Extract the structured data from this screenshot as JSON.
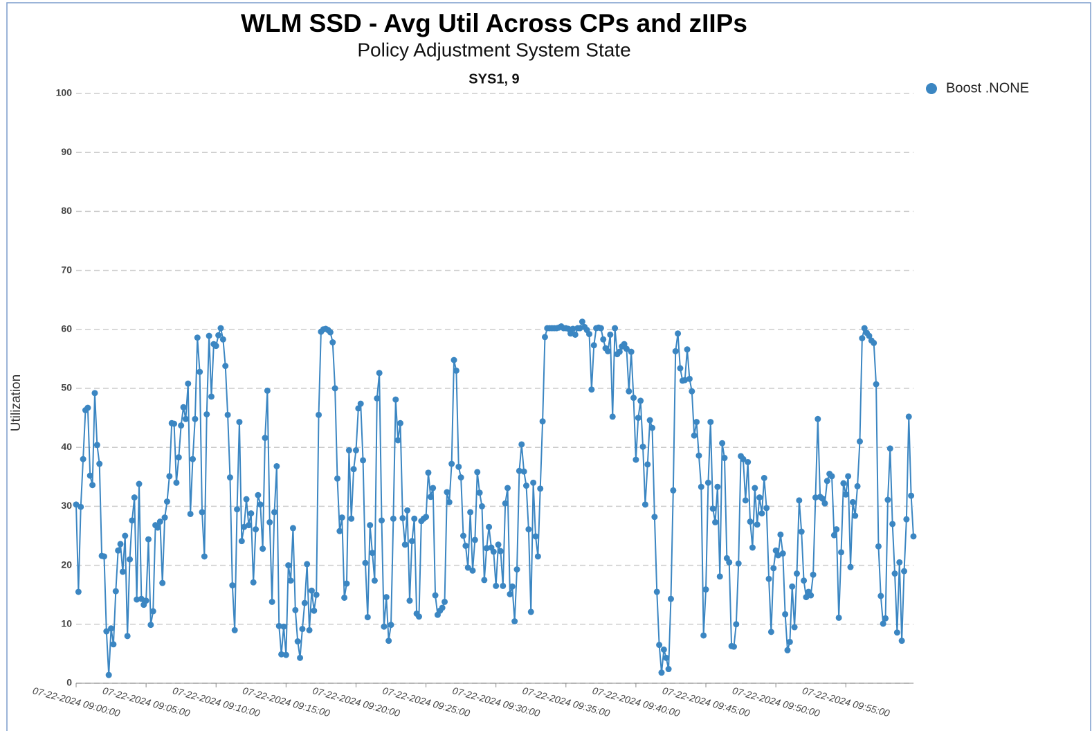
{
  "chart_data": {
    "type": "line",
    "title": "WLM SSD - Avg Util Across CPs and zIIPs",
    "subtitle": "Policy Adjustment System State",
    "panel_title": "SYS1, 9",
    "ylabel": "Utilization",
    "ylim": [
      0,
      100
    ],
    "yticks": [
      0,
      10,
      20,
      30,
      40,
      50,
      60,
      70,
      80,
      90,
      100
    ],
    "grid": true,
    "legend": "top-right",
    "xlim": [
      "07-22-2024 09:00:00",
      "07-22-2024 09:59:50"
    ],
    "xticks": [
      "07-22-2024 09:00:00",
      "07-22-2024 09:05:00",
      "07-22-2024 09:10:00",
      "07-22-2024 09:15:00",
      "07-22-2024 09:20:00",
      "07-22-2024 09:25:00",
      "07-22-2024 09:30:00",
      "07-22-2024 09:35:00",
      "07-22-2024 09:40:00",
      "07-22-2024 09:45:00",
      "07-22-2024 09:50:00",
      "07-22-2024 09:55:00"
    ],
    "x": [
      "07-22-2024 09:00:00",
      "07-22-2024 09:00:10",
      "07-22-2024 09:00:20",
      "07-22-2024 09:00:30",
      "07-22-2024 09:00:40",
      "07-22-2024 09:00:50",
      "07-22-2024 09:01:00",
      "07-22-2024 09:01:10",
      "07-22-2024 09:01:20",
      "07-22-2024 09:01:30",
      "07-22-2024 09:01:40",
      "07-22-2024 09:01:50",
      "07-22-2024 09:02:00",
      "07-22-2024 09:02:10",
      "07-22-2024 09:02:20",
      "07-22-2024 09:02:30",
      "07-22-2024 09:02:40",
      "07-22-2024 09:02:50",
      "07-22-2024 09:03:00",
      "07-22-2024 09:03:10",
      "07-22-2024 09:03:20",
      "07-22-2024 09:03:30",
      "07-22-2024 09:03:40",
      "07-22-2024 09:03:50",
      "07-22-2024 09:04:00",
      "07-22-2024 09:04:10",
      "07-22-2024 09:04:20",
      "07-22-2024 09:04:30",
      "07-22-2024 09:04:40",
      "07-22-2024 09:04:50",
      "07-22-2024 09:05:00",
      "07-22-2024 09:05:10",
      "07-22-2024 09:05:20",
      "07-22-2024 09:05:30",
      "07-22-2024 09:05:40",
      "07-22-2024 09:05:50",
      "07-22-2024 09:06:00",
      "07-22-2024 09:06:10",
      "07-22-2024 09:06:20",
      "07-22-2024 09:06:30",
      "07-22-2024 09:06:40",
      "07-22-2024 09:06:50",
      "07-22-2024 09:07:00",
      "07-22-2024 09:07:10",
      "07-22-2024 09:07:20",
      "07-22-2024 09:07:30",
      "07-22-2024 09:07:40",
      "07-22-2024 09:07:50",
      "07-22-2024 09:08:00",
      "07-22-2024 09:08:10",
      "07-22-2024 09:08:20",
      "07-22-2024 09:08:30",
      "07-22-2024 09:08:40",
      "07-22-2024 09:08:50",
      "07-22-2024 09:09:00",
      "07-22-2024 09:09:10",
      "07-22-2024 09:09:20",
      "07-22-2024 09:09:30",
      "07-22-2024 09:09:40",
      "07-22-2024 09:09:50",
      "07-22-2024 09:10:00",
      "07-22-2024 09:10:10",
      "07-22-2024 09:10:20",
      "07-22-2024 09:10:30",
      "07-22-2024 09:10:40",
      "07-22-2024 09:10:50",
      "07-22-2024 09:11:00",
      "07-22-2024 09:11:10",
      "07-22-2024 09:11:20",
      "07-22-2024 09:11:30",
      "07-22-2024 09:11:40",
      "07-22-2024 09:11:50",
      "07-22-2024 09:12:00",
      "07-22-2024 09:12:10",
      "07-22-2024 09:12:20",
      "07-22-2024 09:12:30",
      "07-22-2024 09:12:40",
      "07-22-2024 09:12:50",
      "07-22-2024 09:13:00",
      "07-22-2024 09:13:10",
      "07-22-2024 09:13:20",
      "07-22-2024 09:13:30",
      "07-22-2024 09:13:40",
      "07-22-2024 09:13:50",
      "07-22-2024 09:14:00",
      "07-22-2024 09:14:10",
      "07-22-2024 09:14:20",
      "07-22-2024 09:14:30",
      "07-22-2024 09:14:40",
      "07-22-2024 09:14:50",
      "07-22-2024 09:15:00",
      "07-22-2024 09:15:10",
      "07-22-2024 09:15:20",
      "07-22-2024 09:15:30",
      "07-22-2024 09:15:40",
      "07-22-2024 09:15:50",
      "07-22-2024 09:16:00",
      "07-22-2024 09:16:10",
      "07-22-2024 09:16:20",
      "07-22-2024 09:16:30",
      "07-22-2024 09:16:40",
      "07-22-2024 09:16:50",
      "07-22-2024 09:17:00",
      "07-22-2024 09:17:10",
      "07-22-2024 09:17:20",
      "07-22-2024 09:17:30",
      "07-22-2024 09:17:40",
      "07-22-2024 09:17:50",
      "07-22-2024 09:18:00",
      "07-22-2024 09:18:10",
      "07-22-2024 09:18:20",
      "07-22-2024 09:18:30",
      "07-22-2024 09:18:40",
      "07-22-2024 09:18:50",
      "07-22-2024 09:19:00",
      "07-22-2024 09:19:10",
      "07-22-2024 09:19:20",
      "07-22-2024 09:19:30",
      "07-22-2024 09:19:40",
      "07-22-2024 09:19:50",
      "07-22-2024 09:20:00",
      "07-22-2024 09:20:10",
      "07-22-2024 09:20:20",
      "07-22-2024 09:20:30",
      "07-22-2024 09:20:40",
      "07-22-2024 09:20:50",
      "07-22-2024 09:21:00",
      "07-22-2024 09:21:10",
      "07-22-2024 09:21:20",
      "07-22-2024 09:21:30",
      "07-22-2024 09:21:40",
      "07-22-2024 09:21:50",
      "07-22-2024 09:22:00",
      "07-22-2024 09:22:10",
      "07-22-2024 09:22:20",
      "07-22-2024 09:22:30",
      "07-22-2024 09:22:40",
      "07-22-2024 09:22:50",
      "07-22-2024 09:23:00",
      "07-22-2024 09:23:10",
      "07-22-2024 09:23:20",
      "07-22-2024 09:23:30",
      "07-22-2024 09:23:40",
      "07-22-2024 09:23:50",
      "07-22-2024 09:24:00",
      "07-22-2024 09:24:10",
      "07-22-2024 09:24:20",
      "07-22-2024 09:24:30",
      "07-22-2024 09:24:40",
      "07-22-2024 09:24:50",
      "07-22-2024 09:25:00",
      "07-22-2024 09:25:10",
      "07-22-2024 09:25:20",
      "07-22-2024 09:25:30",
      "07-22-2024 09:25:40",
      "07-22-2024 09:25:50",
      "07-22-2024 09:26:00",
      "07-22-2024 09:26:10",
      "07-22-2024 09:26:20",
      "07-22-2024 09:26:30",
      "07-22-2024 09:26:40",
      "07-22-2024 09:26:50",
      "07-22-2024 09:27:00",
      "07-22-2024 09:27:10",
      "07-22-2024 09:27:20",
      "07-22-2024 09:27:30",
      "07-22-2024 09:27:40",
      "07-22-2024 09:27:50",
      "07-22-2024 09:28:00",
      "07-22-2024 09:28:10",
      "07-22-2024 09:28:20",
      "07-22-2024 09:28:30",
      "07-22-2024 09:28:40",
      "07-22-2024 09:28:50",
      "07-22-2024 09:29:00",
      "07-22-2024 09:29:10",
      "07-22-2024 09:29:20",
      "07-22-2024 09:29:30",
      "07-22-2024 09:29:40",
      "07-22-2024 09:29:50",
      "07-22-2024 09:30:00",
      "07-22-2024 09:30:10",
      "07-22-2024 09:30:20",
      "07-22-2024 09:30:30",
      "07-22-2024 09:30:40",
      "07-22-2024 09:30:50",
      "07-22-2024 09:31:00",
      "07-22-2024 09:31:10",
      "07-22-2024 09:31:20",
      "07-22-2024 09:31:30",
      "07-22-2024 09:31:40",
      "07-22-2024 09:31:50",
      "07-22-2024 09:32:00",
      "07-22-2024 09:32:10",
      "07-22-2024 09:32:20",
      "07-22-2024 09:32:30",
      "07-22-2024 09:32:40",
      "07-22-2024 09:32:50",
      "07-22-2024 09:33:00",
      "07-22-2024 09:33:10",
      "07-22-2024 09:33:20",
      "07-22-2024 09:33:30",
      "07-22-2024 09:33:40",
      "07-22-2024 09:33:50",
      "07-22-2024 09:34:00",
      "07-22-2024 09:34:10",
      "07-22-2024 09:34:20",
      "07-22-2024 09:34:30",
      "07-22-2024 09:34:40",
      "07-22-2024 09:34:50",
      "07-22-2024 09:35:00",
      "07-22-2024 09:35:10",
      "07-22-2024 09:35:20",
      "07-22-2024 09:35:30",
      "07-22-2024 09:35:40",
      "07-22-2024 09:35:50",
      "07-22-2024 09:36:00",
      "07-22-2024 09:36:10",
      "07-22-2024 09:36:20",
      "07-22-2024 09:36:30",
      "07-22-2024 09:36:40",
      "07-22-2024 09:36:50",
      "07-22-2024 09:37:00",
      "07-22-2024 09:37:10",
      "07-22-2024 09:37:20",
      "07-22-2024 09:37:30",
      "07-22-2024 09:37:40",
      "07-22-2024 09:37:50",
      "07-22-2024 09:38:00",
      "07-22-2024 09:38:10",
      "07-22-2024 09:38:20",
      "07-22-2024 09:38:30",
      "07-22-2024 09:38:40",
      "07-22-2024 09:38:50",
      "07-22-2024 09:39:00",
      "07-22-2024 09:39:10",
      "07-22-2024 09:39:20",
      "07-22-2024 09:39:30",
      "07-22-2024 09:39:40",
      "07-22-2024 09:39:50",
      "07-22-2024 09:40:00",
      "07-22-2024 09:40:10",
      "07-22-2024 09:40:20",
      "07-22-2024 09:40:30",
      "07-22-2024 09:40:40",
      "07-22-2024 09:40:50",
      "07-22-2024 09:41:00",
      "07-22-2024 09:41:10",
      "07-22-2024 09:41:20",
      "07-22-2024 09:41:30",
      "07-22-2024 09:41:40",
      "07-22-2024 09:41:50",
      "07-22-2024 09:42:00",
      "07-22-2024 09:42:10",
      "07-22-2024 09:42:20",
      "07-22-2024 09:42:30",
      "07-22-2024 09:42:40",
      "07-22-2024 09:42:50",
      "07-22-2024 09:43:00",
      "07-22-2024 09:43:10",
      "07-22-2024 09:43:20",
      "07-22-2024 09:43:30",
      "07-22-2024 09:43:40",
      "07-22-2024 09:43:50",
      "07-22-2024 09:44:00",
      "07-22-2024 09:44:10",
      "07-22-2024 09:44:20",
      "07-22-2024 09:44:30",
      "07-22-2024 09:44:40",
      "07-22-2024 09:44:50",
      "07-22-2024 09:45:00",
      "07-22-2024 09:45:10",
      "07-22-2024 09:45:20",
      "07-22-2024 09:45:30",
      "07-22-2024 09:45:40",
      "07-22-2024 09:45:50",
      "07-22-2024 09:46:00",
      "07-22-2024 09:46:10",
      "07-22-2024 09:46:20",
      "07-22-2024 09:46:30",
      "07-22-2024 09:46:40",
      "07-22-2024 09:46:50",
      "07-22-2024 09:47:00",
      "07-22-2024 09:47:10",
      "07-22-2024 09:47:20",
      "07-22-2024 09:47:30",
      "07-22-2024 09:47:40",
      "07-22-2024 09:47:50",
      "07-22-2024 09:48:00",
      "07-22-2024 09:48:10",
      "07-22-2024 09:48:20",
      "07-22-2024 09:48:30",
      "07-22-2024 09:48:40",
      "07-22-2024 09:48:50",
      "07-22-2024 09:49:00",
      "07-22-2024 09:49:10",
      "07-22-2024 09:49:20",
      "07-22-2024 09:49:30",
      "07-22-2024 09:49:40",
      "07-22-2024 09:49:50",
      "07-22-2024 09:50:00",
      "07-22-2024 09:50:10",
      "07-22-2024 09:50:20",
      "07-22-2024 09:50:30",
      "07-22-2024 09:50:40",
      "07-22-2024 09:50:50",
      "07-22-2024 09:51:00",
      "07-22-2024 09:51:10",
      "07-22-2024 09:51:20",
      "07-22-2024 09:51:30",
      "07-22-2024 09:51:40",
      "07-22-2024 09:51:50",
      "07-22-2024 09:52:00",
      "07-22-2024 09:52:10",
      "07-22-2024 09:52:20",
      "07-22-2024 09:52:30",
      "07-22-2024 09:52:40",
      "07-22-2024 09:52:50",
      "07-22-2024 09:53:00",
      "07-22-2024 09:53:10",
      "07-22-2024 09:53:20",
      "07-22-2024 09:53:30",
      "07-22-2024 09:53:40",
      "07-22-2024 09:53:50",
      "07-22-2024 09:54:00",
      "07-22-2024 09:54:10",
      "07-22-2024 09:54:20",
      "07-22-2024 09:54:30",
      "07-22-2024 09:54:40",
      "07-22-2024 09:54:50",
      "07-22-2024 09:55:00",
      "07-22-2024 09:55:10",
      "07-22-2024 09:55:20",
      "07-22-2024 09:55:30",
      "07-22-2024 09:55:40",
      "07-22-2024 09:55:50",
      "07-22-2024 09:56:00",
      "07-22-2024 09:56:10",
      "07-22-2024 09:56:20",
      "07-22-2024 09:56:30",
      "07-22-2024 09:56:40",
      "07-22-2024 09:56:50",
      "07-22-2024 09:57:00",
      "07-22-2024 09:57:10",
      "07-22-2024 09:57:20",
      "07-22-2024 09:57:30",
      "07-22-2024 09:57:40",
      "07-22-2024 09:57:50",
      "07-22-2024 09:58:00",
      "07-22-2024 09:58:10",
      "07-22-2024 09:58:20",
      "07-22-2024 09:58:30",
      "07-22-2024 09:58:40",
      "07-22-2024 09:58:50",
      "07-22-2024 09:59:00",
      "07-22-2024 09:59:10",
      "07-22-2024 09:59:20",
      "07-22-2024 09:59:30",
      "07-22-2024 09:59:40",
      "07-22-2024 09:59:50"
    ],
    "series": [
      {
        "name": "Boost .NONE",
        "color": "#3b86c2",
        "values": [
          30.3,
          15.5,
          29.9,
          38,
          46.3,
          46.7,
          35.2,
          33.6,
          49.2,
          40.4,
          37.2,
          21.6,
          21.5,
          8.8,
          1.4,
          9.3,
          6.6,
          15.6,
          22.5,
          23.6,
          18.9,
          25,
          8,
          21,
          27.6,
          31.5,
          14.2,
          33.8,
          14.3,
          13.3,
          14,
          24.4,
          9.9,
          12.2,
          26.8,
          26.4,
          27.4,
          17,
          28.1,
          30.8,
          35.1,
          44.1,
          44,
          34,
          38.3,
          43.7,
          46.8,
          44.8,
          50.8,
          28.7,
          38,
          44.8,
          58.6,
          52.8,
          29,
          21.5,
          45.6,
          58.9,
          48.6,
          57.5,
          57.2,
          59,
          60.2,
          58.3,
          53.8,
          45.5,
          34.9,
          16.6,
          9,
          29.5,
          44.3,
          24.1,
          26.5,
          31.2,
          26.8,
          28.8,
          17.1,
          26.1,
          31.9,
          30.3,
          22.8,
          41.6,
          49.6,
          27.3,
          13.8,
          29,
          36.8,
          9.7,
          4.9,
          9.6,
          4.8,
          20,
          17.4,
          26.3,
          12.4,
          7.1,
          4.3,
          9.2,
          13.6,
          20.2,
          9,
          15.7,
          12.3,
          15,
          45.5,
          59.6,
          60.0,
          60.1,
          59.9,
          59.5,
          57.8,
          50,
          34.7,
          25.8,
          28.1,
          14.5,
          16.9,
          39.5,
          27.9,
          36.3,
          39.5,
          46.6,
          47.4,
          37.8,
          20.4,
          11.2,
          26.8,
          22.1,
          17.4,
          48.3,
          52.6,
          27.6,
          9.6,
          14.6,
          7.2,
          9.9,
          27.9,
          48.1,
          41.2,
          44.1,
          28,
          23.5,
          29.3,
          14,
          24.1,
          27.9,
          11.8,
          11.3,
          27.5,
          27.9,
          28.2,
          35.7,
          31.6,
          33.1,
          14.9,
          11.6,
          12.3,
          12.8,
          13.8,
          32.4,
          30.7,
          37.2,
          54.8,
          53,
          36.7,
          34.9,
          25,
          23.3,
          19.6,
          29,
          19.1,
          24.3,
          35.8,
          32.3,
          30,
          17.5,
          22.9,
          26.5,
          23,
          22.3,
          16.5,
          23.5,
          22.4,
          16.5,
          30.5,
          33.1,
          15.1,
          16.4,
          10.5,
          19.3,
          36,
          40.5,
          35.9,
          33.5,
          26.1,
          12.1,
          34,
          24.9,
          21.5,
          33,
          44.4,
          58.7,
          60.2,
          60.2,
          60.2,
          60.2,
          60.2,
          60.3,
          60.5,
          60.2,
          60.2,
          60.1,
          59.3,
          60.1,
          59.1,
          60.2,
          60.2,
          61.3,
          60.4,
          59.9,
          59.2,
          49.8,
          57.3,
          60.2,
          60.3,
          60.2,
          58.3,
          56.8,
          56.3,
          59.1,
          45.2,
          60.2,
          55.8,
          56.2,
          57.1,
          57.5,
          56.7,
          49.5,
          56.2,
          48.4,
          37.9,
          45,
          47.9,
          40.1,
          30.3,
          37.1,
          44.6,
          43.3,
          28.2,
          15.5,
          6.5,
          1.8,
          5.7,
          4.3,
          2.4,
          14.3,
          32.7,
          56.3,
          59.3,
          53.4,
          51.3,
          51.4,
          56.6,
          51.6,
          49.5,
          42,
          44.3,
          38.6,
          33.3,
          8.1,
          15.9,
          34,
          44.3,
          29.6,
          27.3,
          33.3,
          18.1,
          40.7,
          38.2,
          21.2,
          20.5,
          6.3,
          6.2,
          10,
          20.3,
          38.5,
          38,
          31,
          37.5,
          27.4,
          23,
          33.1,
          26.9,
          31.5,
          28.8,
          34.8,
          29.7,
          17.7,
          8.7,
          19.5,
          22.5,
          21.7,
          25.2,
          22,
          11.7,
          5.6,
          7,
          16.4,
          9.5,
          18.6,
          31,
          25.7,
          17.4,
          14.6,
          15.5,
          14.9,
          18.4,
          31.5,
          44.8,
          31.6,
          31.3,
          30.5,
          34.3,
          35.5,
          35.1,
          25.1,
          26.1,
          11.1,
          22.2,
          33.9,
          32,
          35.1,
          19.7,
          30.7,
          28.4,
          33.4,
          41,
          58.5,
          60.2,
          59.4,
          58.9,
          58.1,
          57.7,
          50.7,
          23.2,
          14.8,
          10.1,
          11,
          31.1,
          39.8,
          27,
          18.6,
          8.6,
          20.5,
          7.2,
          19,
          27.8,
          45.2,
          31.8,
          24.9
        ]
      }
    ]
  }
}
